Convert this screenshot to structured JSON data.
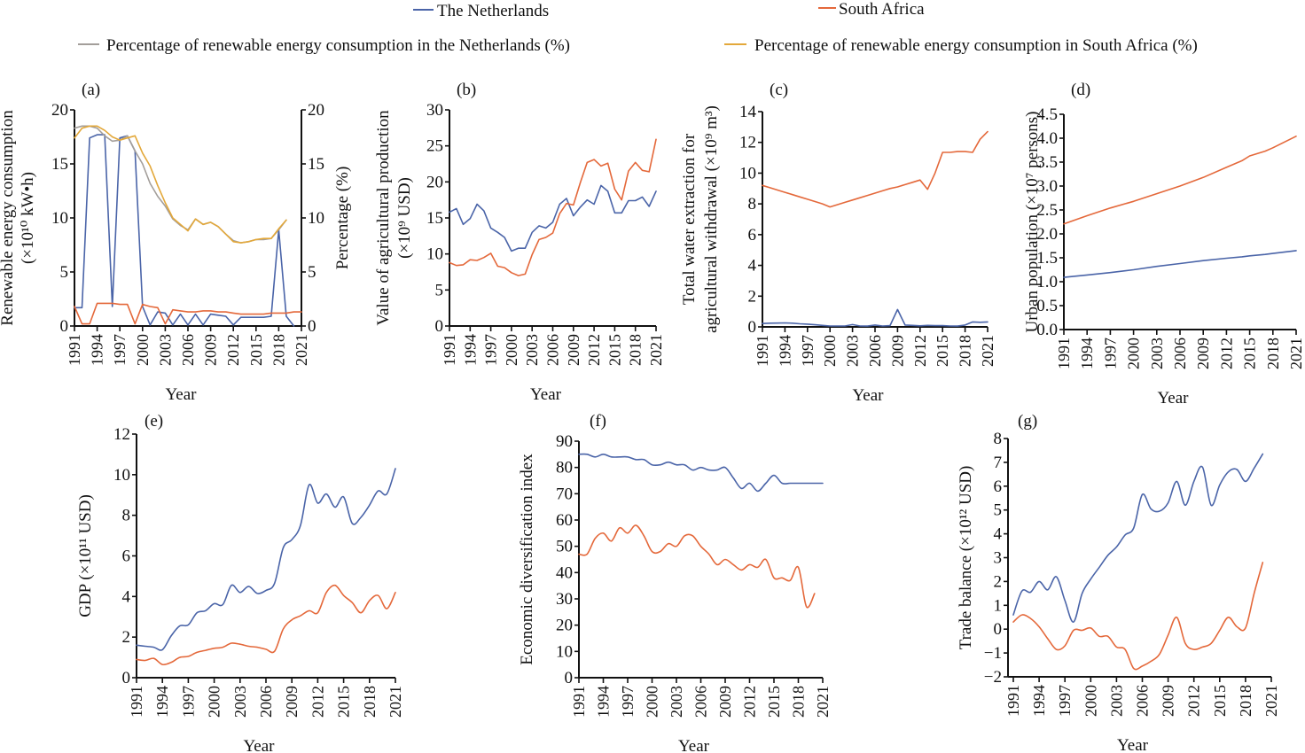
{
  "colors": {
    "netherlands": "#4a64a8",
    "south_africa": "#e4683a",
    "pct_netherlands": "#a39e9a",
    "pct_south_africa": "#e3a83a"
  },
  "legend": {
    "row1": [
      {
        "label": "The Netherlands",
        "color_key": "netherlands"
      },
      {
        "label": "South Africa",
        "color_key": "south_africa"
      }
    ],
    "row2": [
      {
        "label": "Percentage of renewable energy consumption in the Netherlands (%)",
        "color_key": "pct_netherlands"
      },
      {
        "label": "Percentage of renewable energy consumption in South Africa (%)",
        "color_key": "pct_south_africa"
      }
    ]
  },
  "chart_data": [
    {
      "id": "a",
      "panel_label": "(a)",
      "type": "line",
      "xlabel": "Year",
      "ylabel_lines": [
        "Renewable energy consumption",
        "(×10¹⁰ kW•h)"
      ],
      "y2label": "Percentage (%)",
      "x_ticks": [
        1991,
        1994,
        1997,
        2000,
        2003,
        2006,
        2009,
        2012,
        2015,
        2018,
        2021
      ],
      "xlim": [
        1991,
        2021
      ],
      "ylim": [
        0,
        20
      ],
      "y_ticks": [
        0,
        5,
        10,
        15,
        20
      ],
      "y2lim": [
        0,
        20
      ],
      "y2_ticks": [
        0,
        5,
        10,
        15,
        20
      ],
      "x": [
        1991,
        1992,
        1993,
        1994,
        1995,
        1996,
        1997,
        1998,
        1999,
        2000,
        2001,
        2002,
        2003,
        2004,
        2005,
        2006,
        2007,
        2008,
        2009,
        2010,
        2011,
        2012,
        2013,
        2014,
        2015,
        2016,
        2017,
        2018,
        2019,
        2020,
        2021
      ],
      "series": [
        {
          "name": "The Netherlands",
          "color_key": "netherlands",
          "axis": "left",
          "values": [
            1.7,
            1.7,
            17.4,
            17.7,
            17.7,
            1.8,
            17.4,
            17.6,
            16.2,
            1.8,
            0.1,
            1.3,
            1.2,
            0.1,
            1.1,
            0.1,
            1.1,
            0.1,
            1.1,
            1.0,
            0.9,
            0.1,
            0.8,
            0.8,
            0.8,
            0.8,
            0.9,
            8.9,
            0.9,
            0.0,
            null
          ]
        },
        {
          "name": "South Africa",
          "color_key": "south_africa",
          "axis": "left",
          "values": [
            1.8,
            0.2,
            0.2,
            2.1,
            2.1,
            2.1,
            2.0,
            2.0,
            0.2,
            2.0,
            1.8,
            1.7,
            0.2,
            1.5,
            1.4,
            1.3,
            1.3,
            1.4,
            1.4,
            1.3,
            1.3,
            1.2,
            1.1,
            1.1,
            1.1,
            1.1,
            1.2,
            1.2,
            1.2,
            1.3,
            1.3
          ]
        },
        {
          "name": "Percentage of renewable energy consumption in the Netherlands (%)",
          "color_key": "pct_netherlands",
          "axis": "right",
          "values": [
            18.3,
            18.5,
            18.5,
            18.3,
            17.6,
            17.1,
            17.2,
            17.6,
            16.2,
            15.0,
            13.2,
            12.0,
            11.1,
            9.9,
            9.3,
            8.9,
            9.9,
            9.4,
            9.6,
            9.2,
            8.5,
            7.9,
            7.7,
            7.8,
            8.0,
            8.0,
            8.1,
            8.9,
            9.8,
            null,
            null
          ]
        },
        {
          "name": "Percentage of renewable energy consumption in South Africa (%)",
          "color_key": "pct_south_africa",
          "axis": "right",
          "values": [
            17.4,
            18.3,
            18.5,
            18.5,
            18.1,
            17.5,
            17.2,
            17.4,
            17.6,
            16.0,
            14.8,
            13.0,
            11.4,
            10.0,
            9.4,
            8.8,
            9.9,
            9.4,
            9.6,
            9.2,
            8.5,
            7.8,
            7.7,
            7.8,
            8.0,
            8.1,
            8.1,
            9.0,
            9.8,
            null,
            null
          ]
        }
      ]
    },
    {
      "id": "b",
      "panel_label": "(b)",
      "type": "line",
      "xlabel": "Year",
      "ylabel_lines": [
        "Value of agricultural production",
        "(×10⁹ USD)"
      ],
      "x_ticks": [
        1991,
        1994,
        1997,
        2000,
        2003,
        2006,
        2009,
        2012,
        2015,
        2018,
        2021
      ],
      "xlim": [
        1991,
        2021
      ],
      "ylim": [
        0,
        30
      ],
      "y_ticks": [
        0,
        5,
        10,
        15,
        20,
        25,
        30
      ],
      "x": [
        1991,
        1992,
        1993,
        1994,
        1995,
        1996,
        1997,
        1998,
        1999,
        2000,
        2001,
        2002,
        2003,
        2004,
        2005,
        2006,
        2007,
        2008,
        2009,
        2010,
        2011,
        2012,
        2013,
        2014,
        2015,
        2016,
        2017,
        2018,
        2019,
        2020,
        2021
      ],
      "series": [
        {
          "name": "The Netherlands",
          "color_key": "netherlands",
          "values": [
            15.8,
            16.3,
            14.1,
            14.9,
            16.9,
            16.0,
            13.6,
            13.0,
            12.3,
            10.4,
            10.8,
            10.8,
            13.0,
            13.9,
            13.6,
            14.4,
            16.9,
            17.7,
            15.3,
            16.5,
            17.5,
            16.9,
            19.5,
            18.7,
            15.7,
            15.7,
            17.4,
            17.4,
            17.9,
            16.6,
            18.7
          ]
        },
        {
          "name": "South Africa",
          "color_key": "south_africa",
          "values": [
            8.8,
            8.4,
            8.5,
            9.2,
            9.1,
            9.5,
            10.1,
            8.3,
            8.1,
            7.4,
            7.0,
            7.2,
            9.9,
            12.0,
            12.3,
            12.9,
            15.6,
            17.0,
            16.8,
            19.9,
            22.7,
            23.1,
            22.2,
            22.6,
            19.0,
            17.5,
            21.5,
            22.7,
            21.6,
            21.4,
            25.9
          ]
        }
      ]
    },
    {
      "id": "c",
      "panel_label": "(c)",
      "type": "line",
      "xlabel": "Year",
      "ylabel_lines": [
        "Total water extraction for",
        "agricultural withdrawal (×10⁹ m³)"
      ],
      "x_ticks": [
        1991,
        1994,
        1997,
        2000,
        2003,
        2006,
        2009,
        2012,
        2015,
        2018,
        2021
      ],
      "xlim": [
        1991,
        2021
      ],
      "ylim": [
        0,
        14
      ],
      "y_ticks": [
        0,
        2,
        4,
        6,
        8,
        10,
        12,
        14
      ],
      "x": [
        1991,
        1992,
        1993,
        1994,
        1995,
        1996,
        1997,
        1998,
        1999,
        2000,
        2001,
        2002,
        2003,
        2004,
        2005,
        2006,
        2007,
        2008,
        2009,
        2010,
        2011,
        2012,
        2013,
        2014,
        2015,
        2016,
        2017,
        2018,
        2019,
        2020,
        2021
      ],
      "series": [
        {
          "name": "The Netherlands",
          "color_key": "netherlands",
          "values": [
            0.22,
            0.24,
            0.25,
            0.26,
            0.24,
            0.2,
            0.18,
            0.14,
            0.1,
            0.06,
            0.06,
            0.06,
            0.15,
            0.06,
            0.05,
            0.12,
            0.06,
            0.08,
            1.13,
            0.12,
            0.1,
            0.07,
            0.1,
            0.08,
            0.08,
            0.06,
            0.05,
            0.12,
            0.32,
            0.3,
            0.32
          ]
        },
        {
          "name": "South Africa",
          "color_key": "south_africa",
          "values": [
            9.2,
            9.05,
            8.9,
            8.75,
            8.6,
            8.45,
            8.3,
            8.15,
            8.0,
            7.8,
            7.95,
            8.1,
            8.25,
            8.4,
            8.55,
            8.7,
            8.85,
            9.0,
            9.1,
            9.25,
            9.4,
            9.55,
            8.95,
            10.0,
            11.35,
            11.35,
            11.4,
            11.4,
            11.35,
            12.2,
            12.7
          ]
        }
      ]
    },
    {
      "id": "d",
      "panel_label": "(d)",
      "type": "line",
      "xlabel": "Year",
      "ylabel_lines": [
        "Urban population (×10⁷ persons)"
      ],
      "x_ticks": [
        1991,
        1994,
        1997,
        2000,
        2003,
        2006,
        2009,
        2012,
        2015,
        2018,
        2021
      ],
      "xlim": [
        1991,
        2021
      ],
      "ylim": [
        0,
        4.5
      ],
      "y_ticks": [
        0.0,
        0.5,
        1.0,
        1.5,
        2.0,
        2.5,
        3.0,
        3.5,
        4.0,
        4.5
      ],
      "x": [
        1991,
        1994,
        1997,
        2000,
        2003,
        2006,
        2009,
        2012,
        2014,
        2015,
        2017,
        2018,
        2021
      ],
      "series": [
        {
          "name": "The Netherlands",
          "color_key": "netherlands",
          "values": [
            1.09,
            1.14,
            1.19,
            1.25,
            1.32,
            1.38,
            1.44,
            1.49,
            1.52,
            1.54,
            1.57,
            1.59,
            1.65
          ]
        },
        {
          "name": "South Africa",
          "color_key": "south_africa",
          "values": [
            2.21,
            2.38,
            2.54,
            2.68,
            2.84,
            3.0,
            3.18,
            3.39,
            3.53,
            3.63,
            3.73,
            3.8,
            4.04
          ]
        }
      ]
    },
    {
      "id": "e",
      "panel_label": "(e)",
      "type": "line",
      "xlabel": "Year",
      "ylabel_lines": [
        "GDP (×10¹¹ USD)"
      ],
      "x_ticks": [
        1991,
        1994,
        1997,
        2000,
        2003,
        2006,
        2009,
        2012,
        2015,
        2018,
        2021
      ],
      "xlim": [
        1991,
        2021
      ],
      "ylim": [
        0,
        12
      ],
      "y_ticks": [
        0,
        2,
        4,
        6,
        8,
        10,
        12
      ],
      "x": [
        1991,
        1992,
        1993,
        1994,
        1995,
        1996,
        1997,
        1998,
        1999,
        2000,
        2001,
        2002,
        2003,
        2004,
        2005,
        2006,
        2007,
        2008,
        2009,
        2010,
        2011,
        2012,
        2013,
        2014,
        2015,
        2016,
        2017,
        2018,
        2019,
        2020,
        2021
      ],
      "series": [
        {
          "name": "The Netherlands",
          "color_key": "netherlands",
          "values": [
            1.6,
            1.55,
            1.5,
            1.38,
            2.05,
            2.55,
            2.6,
            3.2,
            3.3,
            3.65,
            3.6,
            4.55,
            4.2,
            4.5,
            4.15,
            4.3,
            4.65,
            6.4,
            6.8,
            7.5,
            9.5,
            8.6,
            9.05,
            8.4,
            8.9,
            7.6,
            7.9,
            8.5,
            9.2,
            9.05,
            10.3
          ]
        },
        {
          "name": "South Africa",
          "color_key": "south_africa",
          "values": [
            0.9,
            0.85,
            0.95,
            0.65,
            0.75,
            1.0,
            1.05,
            1.25,
            1.35,
            1.45,
            1.5,
            1.7,
            1.65,
            1.55,
            1.5,
            1.4,
            1.3,
            2.4,
            2.85,
            3.05,
            3.3,
            3.2,
            4.2,
            4.55,
            4.05,
            3.7,
            3.2,
            3.8,
            4.05,
            3.4,
            4.2
          ]
        }
      ]
    },
    {
      "id": "f",
      "panel_label": "(f)",
      "type": "line",
      "xlabel": "Year",
      "ylabel_lines": [
        "Economic diversification index"
      ],
      "x_ticks": [
        1991,
        1994,
        1997,
        2000,
        2003,
        2006,
        2009,
        2012,
        2015,
        2018,
        2021
      ],
      "xlim": [
        1991,
        2021
      ],
      "ylim": [
        0,
        90
      ],
      "y_ticks": [
        0,
        10,
        20,
        30,
        40,
        50,
        60,
        70,
        80,
        90
      ],
      "x": [
        1991,
        1992,
        1993,
        1994,
        1995,
        1996,
        1997,
        1998,
        1999,
        2000,
        2001,
        2002,
        2003,
        2004,
        2005,
        2006,
        2007,
        2008,
        2009,
        2010,
        2011,
        2012,
        2013,
        2014,
        2015,
        2016,
        2017,
        2018,
        2019,
        2020,
        2021
      ],
      "series": [
        {
          "name": "The Netherlands",
          "color_key": "netherlands",
          "values": [
            85,
            85,
            84,
            85,
            84,
            84,
            84,
            83,
            83,
            81,
            81,
            82,
            81,
            81,
            79,
            80,
            79,
            79,
            80,
            76,
            72,
            74,
            71,
            74,
            77,
            74,
            74,
            74,
            74,
            74,
            74
          ]
        },
        {
          "name": "South Africa",
          "color_key": "south_africa",
          "values": [
            47,
            47,
            53,
            55,
            52,
            57,
            55,
            58,
            54,
            48,
            48,
            51,
            50,
            54,
            54,
            50,
            47,
            43,
            45,
            43,
            41,
            43,
            42,
            45,
            38,
            38,
            37,
            42,
            27,
            32,
            null
          ]
        }
      ]
    },
    {
      "id": "g",
      "panel_label": "(g)",
      "type": "line",
      "xlabel": "Year",
      "ylabel_lines": [
        "Trade balance (×10¹² USD)"
      ],
      "x_ticks": [
        1991,
        1994,
        1997,
        2000,
        2003,
        2006,
        2009,
        2012,
        2015,
        2018,
        2021
      ],
      "xlim": [
        1991,
        2021
      ],
      "ylim": [
        -2,
        8
      ],
      "y_ticks": [
        -2,
        -1,
        0,
        1,
        2,
        3,
        4,
        5,
        6,
        7,
        8
      ],
      "x": [
        1991,
        1992,
        1993,
        1994,
        1995,
        1996,
        1997,
        1998,
        1999,
        2000,
        2001,
        2002,
        2003,
        2004,
        2005,
        2006,
        2007,
        2008,
        2009,
        2010,
        2011,
        2012,
        2013,
        2014,
        2015,
        2016,
        2017,
        2018,
        2019,
        2020,
        2021
      ],
      "series": [
        {
          "name": "The Netherlands",
          "color_key": "netherlands",
          "values": [
            0.6,
            1.6,
            1.55,
            2.0,
            1.65,
            2.2,
            1.2,
            0.3,
            1.5,
            2.1,
            2.6,
            3.1,
            3.45,
            3.95,
            4.25,
            5.65,
            5.05,
            4.95,
            5.3,
            6.2,
            5.2,
            6.2,
            6.8,
            5.2,
            6.05,
            6.6,
            6.7,
            6.2,
            6.75,
            7.35,
            null
          ]
        },
        {
          "name": "South Africa",
          "color_key": "south_africa",
          "values": [
            0.3,
            0.6,
            0.45,
            0.1,
            -0.4,
            -0.85,
            -0.7,
            -0.05,
            -0.05,
            0.05,
            -0.3,
            -0.3,
            -0.75,
            -0.85,
            -1.65,
            -1.55,
            -1.35,
            -1.05,
            -0.25,
            0.5,
            -0.6,
            -0.85,
            -0.75,
            -0.6,
            -0.05,
            0.5,
            0.1,
            0.05,
            1.5,
            2.8,
            null
          ]
        }
      ]
    }
  ]
}
